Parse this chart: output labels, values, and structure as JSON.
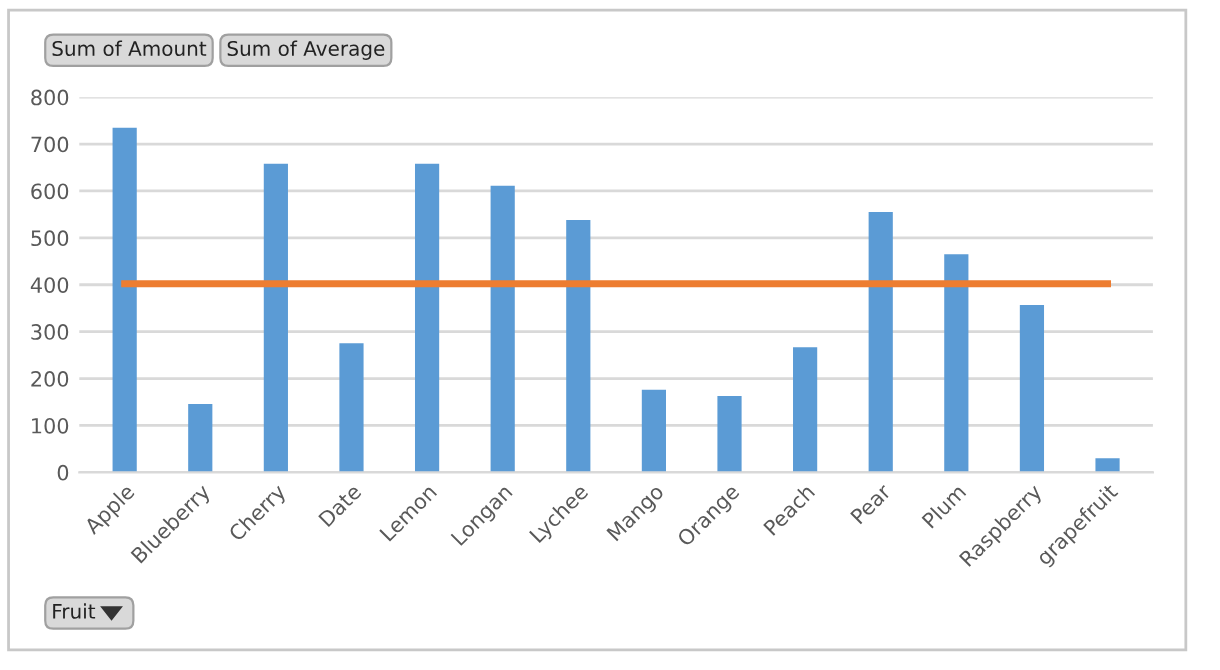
{
  "chart_data": {
    "type": "bar",
    "categories": [
      "Apple",
      "Blueberry",
      "Cherry",
      "Date",
      "Lemon",
      "Longan",
      "Lychee",
      "Mango",
      "Orange",
      "Peach",
      "Pear",
      "Plum",
      "Raspberry",
      "grapefruit"
    ],
    "series": [
      {
        "color": "#5b9bd5",
        "values": [
          735,
          146,
          658,
          275,
          658,
          611,
          538,
          176,
          163,
          267,
          555,
          465,
          357,
          30
        ]
      },
      {
        "type": "line",
        "color": "#ed7d31",
        "values": [
          402,
          402,
          402,
          402,
          402,
          402,
          402,
          402,
          402,
          402,
          402,
          402,
          402,
          402
        ]
      }
    ],
    "ylim": [
      0,
      800
    ],
    "yticks": [
      0,
      100,
      200,
      300,
      400,
      500,
      600,
      700,
      800
    ],
    "grid": "y",
    "legend": false,
    "marker": "none",
    "line_style": "solid",
    "annotations": [
      "Sum of Amount",
      "Sum of Average",
      "Fruit"
    ]
  }
}
